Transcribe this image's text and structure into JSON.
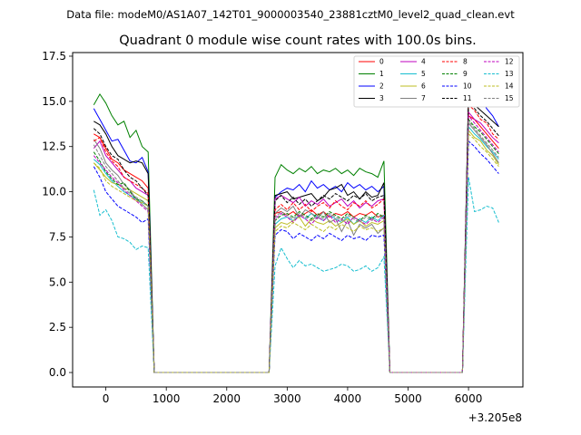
{
  "chart_data": {
    "type": "line",
    "suptitle": "Data file: modeM0/AS1A07_142T01_9000003540_23881cztM0_level2_quad_clean.evt",
    "title": "Quadrant 0 module wise count rates with 100.0s bins.",
    "xlabel": "",
    "ylabel": "",
    "x_offset_label": "+3.205e8",
    "xlim": [
      -550,
      6900
    ],
    "ylim": [
      -0.8,
      17.7
    ],
    "xticks": [
      0,
      1000,
      2000,
      3000,
      4000,
      5000,
      6000
    ],
    "xtick_labels": [
      "0",
      "1000",
      "2000",
      "3000",
      "4000",
      "5000",
      "6000"
    ],
    "yticks": [
      0,
      2.5,
      5,
      7.5,
      10,
      12.5,
      15,
      17.5
    ],
    "ytick_labels": [
      "0.0",
      "2.5",
      "5.0",
      "7.5",
      "10.0",
      "12.5",
      "15.0",
      "17.5"
    ],
    "legend_location": "upper right",
    "segments": [
      {
        "start": -200,
        "count": 10,
        "step": 100
      },
      {
        "start": 2800,
        "count": 19,
        "step": 100
      },
      {
        "start": 6000,
        "count": 6,
        "step": 100
      }
    ],
    "series": [
      {
        "name": "0",
        "color": "#ff0000",
        "dash": "solid",
        "seg_values": [
          [
            13.2,
            13.0,
            12.4,
            11.8,
            11.6,
            11.2,
            11.0,
            10.8,
            10.6,
            10.2
          ],
          [
            8.8,
            8.9,
            8.7,
            8.9,
            8.6,
            8.8,
            9.0,
            8.7,
            8.9,
            8.6,
            8.8,
            8.7,
            8.9,
            8.6,
            8.8,
            8.7,
            8.9,
            8.6,
            8.7
          ],
          [
            14.2,
            14.0,
            13.6,
            13.2,
            12.8,
            12.4
          ]
        ]
      },
      {
        "name": "1",
        "color": "#008000",
        "dash": "solid",
        "seg_values": [
          [
            14.8,
            15.4,
            14.9,
            14.2,
            13.7,
            13.9,
            13.0,
            13.4,
            12.5,
            12.2
          ],
          [
            10.8,
            11.5,
            11.2,
            11.0,
            11.3,
            11.1,
            11.4,
            11.0,
            11.2,
            11.1,
            11.3,
            11.0,
            11.2,
            10.9,
            11.3,
            11.1,
            11.0,
            10.8,
            11.7
          ],
          [
            15.5,
            15.6,
            15.6,
            16.8,
            15.4,
            15.1
          ]
        ]
      },
      {
        "name": "2",
        "color": "#0000ff",
        "dash": "solid",
        "seg_values": [
          [
            14.6,
            14.0,
            13.4,
            12.8,
            12.9,
            12.3,
            11.7,
            11.6,
            11.9,
            11.1
          ],
          [
            9.7,
            10.0,
            10.2,
            10.1,
            10.4,
            10.0,
            10.6,
            10.2,
            10.4,
            10.1,
            10.3,
            10.0,
            10.5,
            10.2,
            10.4,
            10.1,
            10.3,
            10.0,
            10.3
          ],
          [
            15.0,
            15.8,
            15.2,
            14.6,
            14.2,
            13.6
          ]
        ]
      },
      {
        "name": "3",
        "color": "#000000",
        "dash": "solid",
        "seg_values": [
          [
            13.9,
            13.7,
            13.2,
            12.5,
            12.0,
            11.8,
            11.6,
            11.7,
            11.6,
            11.0
          ],
          [
            9.8,
            9.9,
            10.0,
            9.6,
            9.7,
            9.8,
            9.9,
            9.5,
            9.7,
            10.1,
            10.2,
            10.4,
            9.8,
            10.0,
            9.6,
            10.0,
            9.7,
            9.8,
            10.5
          ],
          [
            15.3,
            14.8,
            14.5,
            14.2,
            13.9,
            13.6
          ]
        ]
      },
      {
        "name": "4",
        "color": "#bf00bf",
        "dash": "solid",
        "seg_values": [
          [
            12.4,
            12.8,
            12.0,
            11.6,
            11.2,
            10.8,
            10.6,
            10.2,
            10.0,
            9.8
          ],
          [
            9.6,
            9.8,
            9.6,
            9.4,
            9.7,
            9.2,
            9.5,
            9.3,
            9.6,
            9.2,
            9.4,
            9.6,
            9.2,
            9.5,
            9.1,
            9.4,
            9.2,
            9.5,
            9.6
          ],
          [
            14.4,
            14.0,
            13.8,
            13.4,
            13.0,
            12.7
          ]
        ]
      },
      {
        "name": "5",
        "color": "#17becf",
        "dash": "solid",
        "seg_values": [
          [
            11.8,
            11.5,
            11.0,
            10.6,
            10.3,
            10.0,
            9.8,
            9.6,
            9.4,
            9.2
          ],
          [
            8.2,
            8.5,
            8.6,
            8.4,
            8.7,
            8.5,
            8.8,
            8.6,
            8.4,
            8.7,
            8.5,
            8.3,
            8.6,
            8.2,
            8.5,
            8.3,
            8.6,
            8.4,
            8.7
          ],
          [
            13.6,
            13.2,
            12.9,
            12.5,
            12.2,
            11.8
          ]
        ]
      },
      {
        "name": "6",
        "color": "#bcbd22",
        "dash": "solid",
        "seg_values": [
          [
            11.6,
            11.2,
            10.8,
            10.5,
            10.4,
            10.2,
            10.1,
            9.9,
            9.7,
            9.5
          ],
          [
            8.0,
            8.3,
            8.2,
            8.4,
            8.6,
            8.1,
            8.5,
            8.3,
            8.2,
            8.4,
            8.1,
            8.3,
            8.5,
            8.2,
            8.4,
            8.1,
            8.3,
            8.2,
            8.4
          ],
          [
            13.4,
            13.0,
            12.8,
            12.3,
            12.0,
            11.5
          ]
        ]
      },
      {
        "name": "7",
        "color": "#7f7f7f",
        "dash": "solid",
        "seg_values": [
          [
            12.9,
            12.4,
            11.6,
            11.2,
            10.9,
            10.4,
            10.1,
            9.6,
            9.3,
            9.0
          ],
          [
            8.8,
            9.1,
            8.9,
            9.2,
            8.6,
            9.0,
            8.8,
            8.5,
            8.9,
            8.3,
            8.5,
            7.8,
            8.4,
            7.6,
            8.2,
            8.0,
            8.2,
            7.7,
            8.0
          ],
          [
            13.8,
            13.4,
            13.0,
            12.6,
            12.1,
            11.6
          ]
        ]
      },
      {
        "name": "8",
        "color": "#ff0000",
        "dash": "dashed",
        "seg_values": [
          [
            12.8,
            13.0,
            12.2,
            11.7,
            11.4,
            10.8,
            10.6,
            10.4,
            10.2,
            9.9
          ],
          [
            9.0,
            9.3,
            9.0,
            9.4,
            9.0,
            9.3,
            8.9,
            9.2,
            9.4,
            9.1,
            9.5,
            9.2,
            9.0,
            9.4,
            9.2,
            9.5,
            9.1,
            9.3,
            9.6
          ],
          [
            14.8,
            14.5,
            14.0,
            13.8,
            13.2,
            12.9
          ]
        ]
      },
      {
        "name": "9",
        "color": "#008000",
        "dash": "dashed",
        "seg_values": [
          [
            12.2,
            11.7,
            11.1,
            10.7,
            10.4,
            10.5,
            10.0,
            9.6,
            9.5,
            9.2
          ],
          [
            8.4,
            8.7,
            8.8,
            8.6,
            8.9,
            8.7,
            8.5,
            8.8,
            8.6,
            8.9,
            8.7,
            8.5,
            8.8,
            8.6,
            8.4,
            8.7,
            8.5,
            8.8,
            8.6
          ],
          [
            14.0,
            13.6,
            13.3,
            12.9,
            12.5,
            12.1
          ]
        ]
      },
      {
        "name": "10",
        "color": "#0000ff",
        "dash": "dashed",
        "seg_values": [
          [
            11.4,
            10.8,
            10.0,
            9.6,
            9.2,
            9.0,
            8.8,
            8.6,
            8.3,
            8.5
          ],
          [
            7.6,
            7.9,
            7.8,
            7.4,
            7.7,
            7.5,
            7.3,
            7.6,
            7.4,
            7.7,
            7.5,
            7.3,
            7.6,
            7.4,
            7.5,
            7.3,
            7.6,
            7.5,
            7.6
          ],
          [
            12.8,
            12.5,
            12.1,
            11.8,
            11.4,
            11.0
          ]
        ]
      },
      {
        "name": "11",
        "color": "#000000",
        "dash": "dashed",
        "seg_values": [
          [
            13.5,
            13.2,
            12.5,
            12.0,
            11.8,
            11.2,
            10.8,
            10.6,
            10.2,
            9.8
          ],
          [
            9.5,
            9.8,
            9.4,
            9.7,
            9.3,
            9.6,
            9.2,
            9.5,
            9.8,
            9.6,
            9.9,
            9.7,
            9.5,
            9.8,
            9.6,
            9.9,
            9.5,
            9.7,
            9.8
          ],
          [
            15.0,
            14.6,
            14.2,
            13.9,
            13.5,
            13.1
          ]
        ]
      },
      {
        "name": "12",
        "color": "#bf00bf",
        "dash": "dashed",
        "seg_values": [
          [
            12.0,
            11.6,
            11.2,
            10.8,
            10.5,
            10.1,
            9.8,
            9.5,
            9.2,
            8.9
          ],
          [
            8.5,
            8.8,
            8.6,
            8.3,
            8.7,
            8.5,
            8.2,
            8.6,
            8.4,
            8.7,
            8.3,
            8.5,
            8.2,
            8.6,
            8.4,
            8.2,
            8.5,
            8.3,
            8.6
          ],
          [
            14.2,
            13.8,
            13.4,
            13.0,
            12.6,
            12.2
          ]
        ]
      },
      {
        "name": "13",
        "color": "#17becf",
        "dash": "dashed",
        "seg_values": [
          [
            10.1,
            8.7,
            9.0,
            8.4,
            7.5,
            7.4,
            7.2,
            6.8,
            7.0,
            6.9
          ],
          [
            5.9,
            6.9,
            6.3,
            5.8,
            6.2,
            5.9,
            6.0,
            5.8,
            5.6,
            5.7,
            5.8,
            6.0,
            5.9,
            5.6,
            5.7,
            5.9,
            5.6,
            5.8,
            6.4
          ],
          [
            10.8,
            8.9,
            9.0,
            9.2,
            9.1,
            8.3
          ]
        ]
      },
      {
        "name": "14",
        "color": "#bcbd22",
        "dash": "dashed",
        "seg_values": [
          [
            11.6,
            11.3,
            10.6,
            10.3,
            10.1,
            9.9,
            9.7,
            9.5,
            9.4,
            9.2
          ],
          [
            7.8,
            8.1,
            8.0,
            8.3,
            8.1,
            7.9,
            8.2,
            8.0,
            7.8,
            8.1,
            7.9,
            8.2,
            8.0,
            7.8,
            8.1,
            7.9,
            8.0,
            7.8,
            8.0
          ],
          [
            13.2,
            12.9,
            12.5,
            12.2,
            11.8,
            11.4
          ]
        ]
      },
      {
        "name": "15",
        "color": "#7f7f7f",
        "dash": "dashed",
        "seg_values": [
          [
            12.6,
            12.0,
            11.4,
            11.0,
            10.6,
            10.2,
            9.9,
            9.7,
            9.5,
            9.2
          ],
          [
            8.6,
            8.9,
            8.7,
            8.5,
            8.8,
            8.6,
            8.4,
            8.7,
            8.5,
            8.8,
            8.6,
            8.4,
            8.7,
            8.5,
            8.3,
            8.6,
            8.4,
            8.7,
            8.5
          ],
          [
            13.9,
            13.5,
            13.1,
            12.7,
            12.3,
            11.9
          ]
        ]
      }
    ]
  }
}
